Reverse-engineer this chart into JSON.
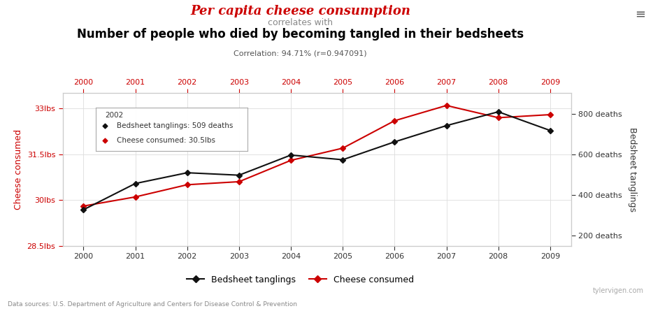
{
  "years": [
    2000,
    2001,
    2002,
    2003,
    2004,
    2005,
    2006,
    2007,
    2008,
    2009
  ],
  "cheese_lbs": [
    29.8,
    30.1,
    30.5,
    30.6,
    31.3,
    31.7,
    32.6,
    33.1,
    32.7,
    32.8
  ],
  "bedsheet_deaths": [
    327,
    456,
    509,
    497,
    596,
    573,
    661,
    741,
    809,
    717
  ],
  "title1": "Per capita cheese consumption",
  "title2": "correlates with",
  "title3": "Number of people who died by becoming tangled in their bedsheets",
  "correlation_text": "Correlation: 94.71% (r=0.947091)",
  "title1_color": "#cc0000",
  "title2_color": "#888888",
  "title3_color": "#000000",
  "cheese_color": "#cc0000",
  "bedsheet_color": "#111111",
  "ylabel_left": "Cheese consumed",
  "ylabel_right": "Bedsheet tanglings",
  "ylim_left": [
    28.5,
    33.5
  ],
  "ylim_right": [
    150,
    900
  ],
  "yticks_left": [
    28.5,
    30.0,
    31.5,
    33.0
  ],
  "yticks_left_labels": [
    "28.5lbs",
    "30lbs",
    "31.5lbs",
    "33lbs"
  ],
  "yticks_right": [
    200,
    400,
    600,
    800
  ],
  "yticks_right_labels": [
    "200 deaths",
    "400 deaths",
    "600 deaths",
    "800 deaths"
  ],
  "annotation_year": "2002",
  "annotation_bedsheet": "Bedsheet tanglings: 509 deaths",
  "annotation_cheese": "Cheese consumed: 30.5lbs",
  "legend_bedsheet": "Bedsheet tanglings",
  "legend_cheese": "Cheese consumed",
  "source_text": "Data sources: U.S. Department of Agriculture and Centers for Disease Control & Prevention",
  "watermark": "tylervigen.com",
  "menu_symbol": "≡",
  "bg_color": "#ffffff",
  "grid_color": "#dddddd"
}
